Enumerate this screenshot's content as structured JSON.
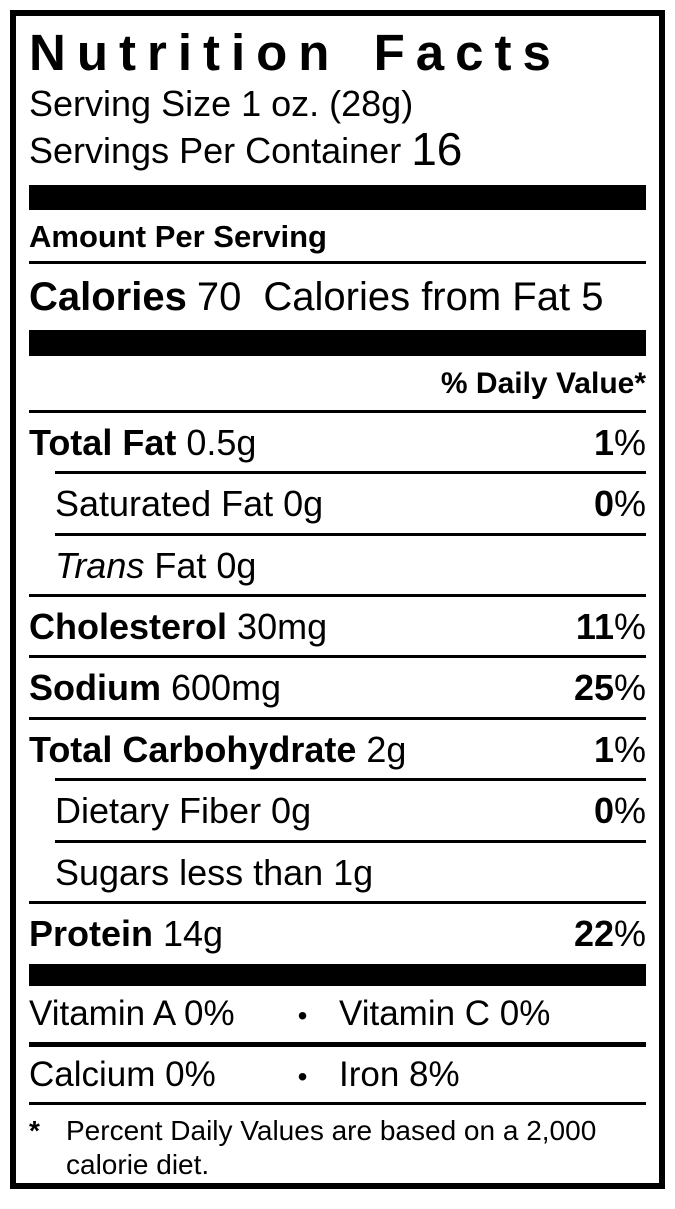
{
  "label": {
    "title": "Nutrition Facts",
    "serving_size": "Serving Size 1 oz. (28g)",
    "servings_label": "Servings Per Container",
    "servings_value": "16",
    "amount_per_serving": "Amount Per Serving",
    "calories": {
      "label": "Calories",
      "value": "70",
      "from_fat": "Calories from Fat 5"
    },
    "daily_value_header": "% Daily Value*",
    "rows": [
      {
        "b": "Total Fat",
        "r": " 0.5g",
        "dv": "1",
        "sign": "%"
      },
      {
        "r": "Saturated Fat 0g",
        "dv": "0",
        "sign": "%"
      },
      {
        "i": "Trans",
        "r": " Fat 0g"
      },
      {
        "b": "Cholesterol",
        "r": " 30mg",
        "dv": "11",
        "sign": "%"
      },
      {
        "b": "Sodium",
        "r": " 600mg",
        "dv": "25",
        "sign": "%"
      },
      {
        "b": "Total Carbohydrate",
        "r": " 2g",
        "dv": "1",
        "sign": "%"
      },
      {
        "r": "Dietary Fiber 0g",
        "dv": "0",
        "sign": "%"
      },
      {
        "r": "Sugars less than 1g"
      },
      {
        "b": "Protein",
        "r": " 14g",
        "dv": "22",
        "sign": "%"
      }
    ],
    "micros": [
      {
        "left": "Vitamin A 0%",
        "bullet": "•",
        "right": "Vitamin C 0%"
      },
      {
        "left": "Calcium 0%",
        "bullet": "•",
        "right": "Iron 8%"
      }
    ],
    "footnote": {
      "symbol": "*",
      "text": "Percent Daily Values are based on a 2,000 calorie diet."
    }
  }
}
